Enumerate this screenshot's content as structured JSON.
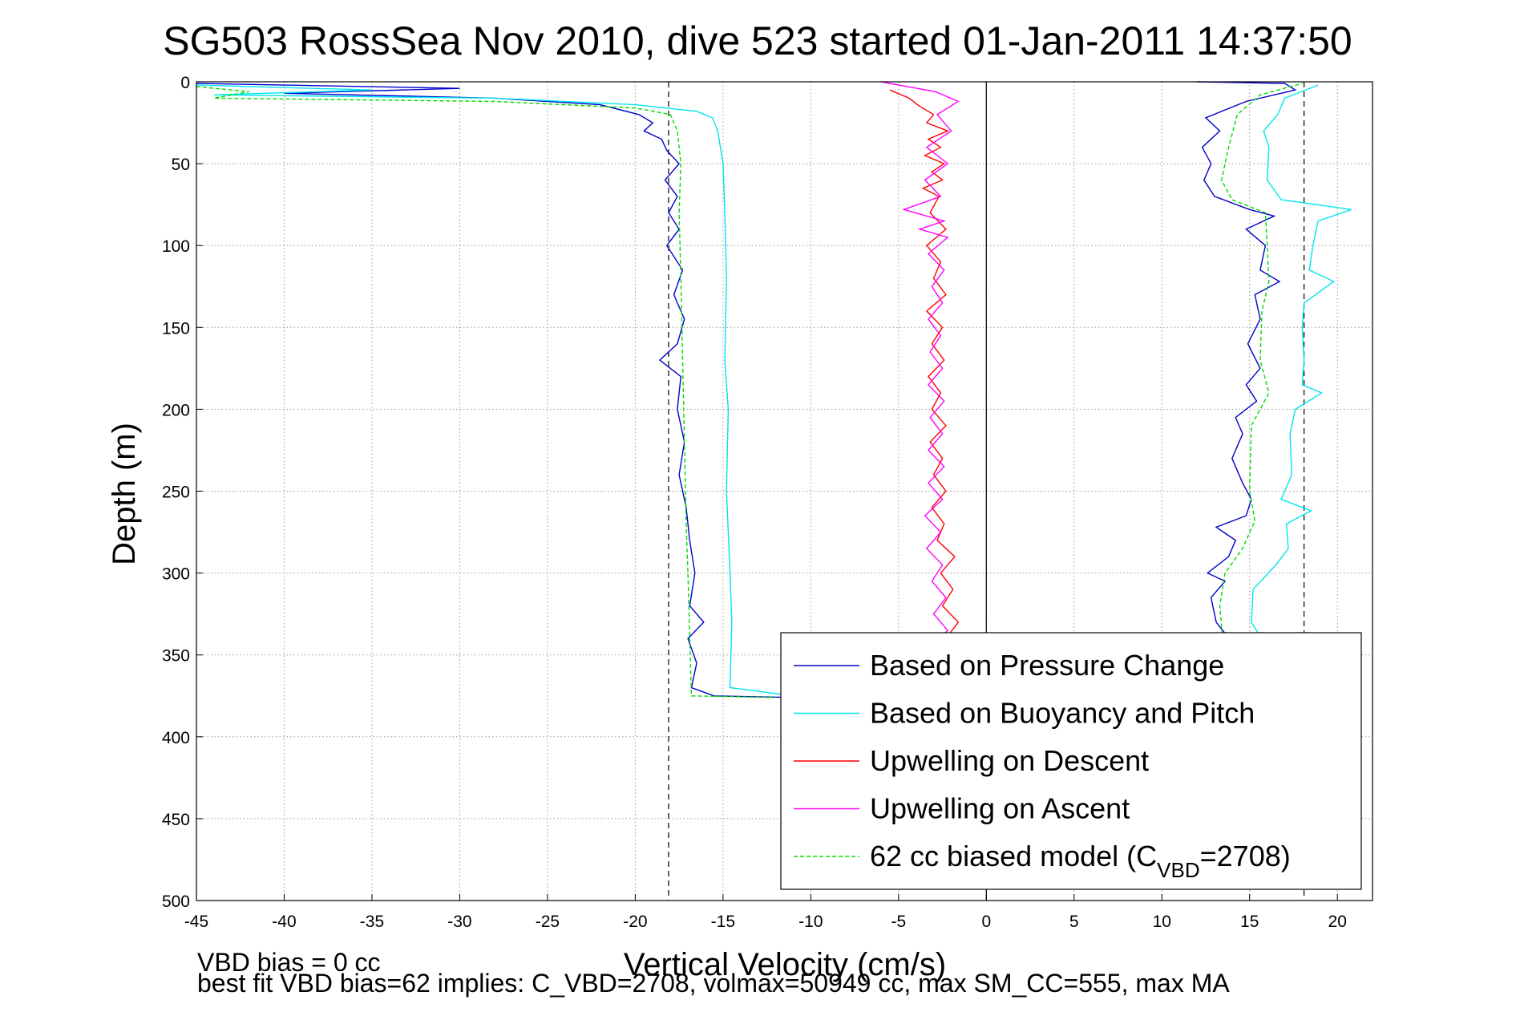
{
  "chart_data": {
    "type": "line",
    "title": "SG503 RossSea Nov 2010, dive 523 started 01-Jan-2011 14:37:50",
    "xlabel": "Vertical Velocity (cm/s)",
    "ylabel": "Depth (m)",
    "xlim": [
      -45,
      22
    ],
    "ylim": [
      0,
      500
    ],
    "y_reversed": true,
    "grid": true,
    "x_ticks": [
      "-45",
      "-40",
      "-35",
      "-30",
      "-25",
      "-20",
      "-15",
      "-10",
      "-5",
      "0",
      "5",
      "10",
      "15",
      "20"
    ],
    "y_ticks": [
      "0",
      "50",
      "100",
      "150",
      "200",
      "250",
      "300",
      "350",
      "400",
      "450",
      "500"
    ],
    "reference_lines_x": [
      -18.1,
      0,
      18.1
    ],
    "legend_position": "bottom-right",
    "series": [
      {
        "name": "Based on Pressure Change",
        "color": "#0000cc",
        "style": "solid",
        "points": [
          [
            -45,
            1
          ],
          [
            -30,
            4
          ],
          [
            -40,
            7
          ],
          [
            -28,
            10
          ],
          [
            -22,
            14
          ],
          [
            -19.8,
            20
          ],
          [
            -19,
            25
          ],
          [
            -19.5,
            30
          ],
          [
            -18.5,
            35
          ],
          [
            -18.2,
            42
          ],
          [
            -17.5,
            50
          ],
          [
            -18.3,
            60
          ],
          [
            -17.6,
            70
          ],
          [
            -18.1,
            80
          ],
          [
            -17.5,
            90
          ],
          [
            -18.2,
            100
          ],
          [
            -17.3,
            115
          ],
          [
            -17.8,
            130
          ],
          [
            -17.2,
            145
          ],
          [
            -17.6,
            160
          ],
          [
            -18.6,
            170
          ],
          [
            -17.4,
            180
          ],
          [
            -17.6,
            200
          ],
          [
            -17.2,
            220
          ],
          [
            -17.5,
            240
          ],
          [
            -17.1,
            260
          ],
          [
            -16.9,
            280
          ],
          [
            -16.6,
            300
          ],
          [
            -16.9,
            320
          ],
          [
            -16.1,
            330
          ],
          [
            -17.0,
            340
          ],
          [
            -16.5,
            355
          ],
          [
            -16.8,
            370
          ],
          [
            -15.5,
            375
          ],
          [
            -11,
            376
          ],
          [
            -6,
            377
          ]
        ]
      },
      {
        "name": "Based on Buoyancy and Pitch",
        "color": "#00e5ee",
        "style": "solid",
        "points": [
          [
            -45,
            2
          ],
          [
            -35,
            5
          ],
          [
            -44,
            8
          ],
          [
            -28,
            10
          ],
          [
            -20,
            14
          ],
          [
            -16.5,
            18
          ],
          [
            -15.6,
            22
          ],
          [
            -15.3,
            30
          ],
          [
            -15.0,
            50
          ],
          [
            -14.9,
            80
          ],
          [
            -14.8,
            120
          ],
          [
            -14.9,
            170
          ],
          [
            -14.7,
            200
          ],
          [
            -14.8,
            250
          ],
          [
            -14.6,
            300
          ],
          [
            -14.5,
            330
          ],
          [
            -14.6,
            370
          ],
          [
            -11,
            375
          ],
          [
            -6,
            377
          ]
        ]
      },
      {
        "name": "Upwelling on Descent",
        "color": "#ff0000",
        "style": "solid",
        "points": [
          [
            -5.5,
            5
          ],
          [
            -4.4,
            10
          ],
          [
            -3.8,
            15
          ],
          [
            -3.0,
            20
          ],
          [
            -3.4,
            25
          ],
          [
            -2.2,
            30
          ],
          [
            -3.3,
            35
          ],
          [
            -2.6,
            40
          ],
          [
            -3.5,
            45
          ],
          [
            -2.4,
            50
          ],
          [
            -3.1,
            55
          ],
          [
            -2.5,
            60
          ],
          [
            -3.6,
            65
          ],
          [
            -2.7,
            70
          ],
          [
            -3.2,
            80
          ],
          [
            -2.3,
            90
          ],
          [
            -3.4,
            100
          ],
          [
            -2.6,
            110
          ],
          [
            -3.0,
            120
          ],
          [
            -2.3,
            130
          ],
          [
            -3.4,
            140
          ],
          [
            -2.5,
            150
          ],
          [
            -3.1,
            160
          ],
          [
            -2.4,
            170
          ],
          [
            -3.3,
            180
          ],
          [
            -2.6,
            190
          ],
          [
            -3.1,
            200
          ],
          [
            -2.3,
            210
          ],
          [
            -3.2,
            220
          ],
          [
            -2.5,
            230
          ],
          [
            -3.0,
            240
          ],
          [
            -2.3,
            250
          ],
          [
            -3.1,
            260
          ],
          [
            -2.4,
            270
          ],
          [
            -2.8,
            280
          ],
          [
            -1.8,
            290
          ],
          [
            -2.6,
            300
          ],
          [
            -1.9,
            310
          ],
          [
            -2.5,
            320
          ],
          [
            -1.6,
            330
          ],
          [
            -2.3,
            340
          ],
          [
            -2.0,
            350
          ],
          [
            -2.4,
            360
          ],
          [
            -2.1,
            375
          ]
        ]
      },
      {
        "name": "Upwelling on Ascent",
        "color": "#ff00ff",
        "style": "solid",
        "points": [
          [
            -2.6,
            375
          ],
          [
            -3.3,
            365
          ],
          [
            -2.4,
            355
          ],
          [
            -3.1,
            345
          ],
          [
            -2.2,
            335
          ],
          [
            -3.0,
            325
          ],
          [
            -2.3,
            315
          ],
          [
            -3.1,
            305
          ],
          [
            -2.5,
            295
          ],
          [
            -3.4,
            285
          ],
          [
            -2.6,
            275
          ],
          [
            -3.5,
            265
          ],
          [
            -2.5,
            255
          ],
          [
            -3.3,
            245
          ],
          [
            -2.4,
            235
          ],
          [
            -3.3,
            225
          ],
          [
            -2.5,
            215
          ],
          [
            -3.2,
            205
          ],
          [
            -2.4,
            195
          ],
          [
            -3.3,
            185
          ],
          [
            -2.5,
            175
          ],
          [
            -3.2,
            165
          ],
          [
            -2.6,
            155
          ],
          [
            -3.3,
            145
          ],
          [
            -2.5,
            135
          ],
          [
            -3.1,
            125
          ],
          [
            -2.4,
            115
          ],
          [
            -3.3,
            105
          ],
          [
            -2.2,
            95
          ],
          [
            -3.8,
            90
          ],
          [
            -2.4,
            85
          ],
          [
            -4.7,
            78
          ],
          [
            -2.6,
            70
          ],
          [
            -3.5,
            60
          ],
          [
            -2.2,
            50
          ],
          [
            -3.4,
            40
          ],
          [
            -2.0,
            30
          ],
          [
            -2.8,
            20
          ],
          [
            -1.6,
            12
          ],
          [
            -2.9,
            6
          ],
          [
            -6,
            0
          ]
        ]
      },
      {
        "name": "62 cc biased model (C_VBD=2708)",
        "color": "#00dd00",
        "style": "dashed",
        "points": [
          [
            -45,
            3
          ],
          [
            -42,
            6
          ],
          [
            -44,
            10
          ],
          [
            -28,
            12
          ],
          [
            -20,
            16
          ],
          [
            -18,
            20
          ],
          [
            -17.6,
            30
          ],
          [
            -17.4,
            50
          ],
          [
            -17.5,
            80
          ],
          [
            -17.4,
            120
          ],
          [
            -17.3,
            170
          ],
          [
            -17.2,
            220
          ],
          [
            -17.1,
            270
          ],
          [
            -17.0,
            300
          ],
          [
            -16.9,
            340
          ],
          [
            -16.8,
            375
          ],
          [
            -12,
            376
          ]
        ]
      }
    ],
    "ascent_series": [
      {
        "name": "Based on Pressure Change",
        "color": "#0000cc",
        "points": [
          [
            14.0,
            375
          ],
          [
            13.2,
            360
          ],
          [
            14.2,
            345
          ],
          [
            13.1,
            330
          ],
          [
            12.8,
            315
          ],
          [
            13.6,
            305
          ],
          [
            12.6,
            300
          ],
          [
            13.8,
            290
          ],
          [
            14.2,
            280
          ],
          [
            13.1,
            272
          ],
          [
            14.8,
            265
          ],
          [
            15.1,
            255
          ],
          [
            14.6,
            245
          ],
          [
            14.0,
            230
          ],
          [
            14.6,
            215
          ],
          [
            14.2,
            205
          ],
          [
            15.4,
            195
          ],
          [
            14.8,
            185
          ],
          [
            15.6,
            175
          ],
          [
            14.9,
            160
          ],
          [
            15.6,
            145
          ],
          [
            15.3,
            130
          ],
          [
            16.7,
            122
          ],
          [
            15.6,
            115
          ],
          [
            15.9,
            100
          ],
          [
            14.8,
            90
          ],
          [
            16.4,
            82
          ],
          [
            15.0,
            78
          ],
          [
            13.0,
            70
          ],
          [
            12.4,
            60
          ],
          [
            12.8,
            50
          ],
          [
            12.3,
            40
          ],
          [
            13.3,
            30
          ],
          [
            12.5,
            22
          ],
          [
            14.8,
            12
          ],
          [
            17.6,
            5
          ],
          [
            17.0,
            1
          ],
          [
            12,
            0
          ]
        ]
      },
      {
        "name": "Based on Buoyancy and Pitch",
        "color": "#00e5ee",
        "points": [
          [
            16.0,
            345
          ],
          [
            15.1,
            330
          ],
          [
            15.2,
            310
          ],
          [
            16.5,
            295
          ],
          [
            17.2,
            285
          ],
          [
            17.1,
            270
          ],
          [
            18.5,
            262
          ],
          [
            16.8,
            255
          ],
          [
            17.4,
            240
          ],
          [
            17.3,
            215
          ],
          [
            17.6,
            200
          ],
          [
            19.1,
            190
          ],
          [
            18.0,
            185
          ],
          [
            18.1,
            170
          ],
          [
            18.0,
            150
          ],
          [
            18.1,
            135
          ],
          [
            19.8,
            122
          ],
          [
            18.4,
            115
          ],
          [
            18.6,
            100
          ],
          [
            18.9,
            85
          ],
          [
            20.8,
            78
          ],
          [
            16.8,
            72
          ],
          [
            16.0,
            60
          ],
          [
            16.1,
            40
          ],
          [
            15.8,
            30
          ],
          [
            16.6,
            20
          ],
          [
            17.0,
            10
          ],
          [
            18.9,
            2
          ]
        ]
      },
      {
        "name": "62 cc biased model",
        "color": "#00dd00",
        "points": [
          [
            13.5,
            345
          ],
          [
            13.3,
            320
          ],
          [
            13.6,
            300
          ],
          [
            14.6,
            285
          ],
          [
            15.3,
            268
          ],
          [
            15.0,
            250
          ],
          [
            15.1,
            210
          ],
          [
            16.1,
            190
          ],
          [
            15.6,
            170
          ],
          [
            15.7,
            140
          ],
          [
            16.1,
            122
          ],
          [
            16.0,
            100
          ],
          [
            15.9,
            80
          ],
          [
            14.0,
            72
          ],
          [
            13.4,
            60
          ],
          [
            13.8,
            40
          ],
          [
            14.3,
            20
          ],
          [
            15.6,
            8
          ],
          [
            18.0,
            1
          ]
        ]
      }
    ],
    "legend": {
      "entries": [
        {
          "label": "Based on Pressure Change",
          "color": "#0000cc",
          "style": "solid"
        },
        {
          "label": "Based on Buoyancy and Pitch",
          "color": "#00e5ee",
          "style": "solid"
        },
        {
          "label": "Upwelling on Descent",
          "color": "#ff0000",
          "style": "solid"
        },
        {
          "label": "Upwelling on Ascent",
          "color": "#ff00ff",
          "style": "solid"
        },
        {
          "label_prefix": "62 cc biased model (C",
          "label_sub": "VBD",
          "label_suffix": "=2708)",
          "color": "#00dd00",
          "style": "dashed"
        }
      ]
    },
    "annotations": [
      "VBD bias = 0 cc",
      "best fit VBD bias=62 implies: C_VBD=2708, volmax=50949 cc, max SM_CC=555, max MA"
    ]
  }
}
